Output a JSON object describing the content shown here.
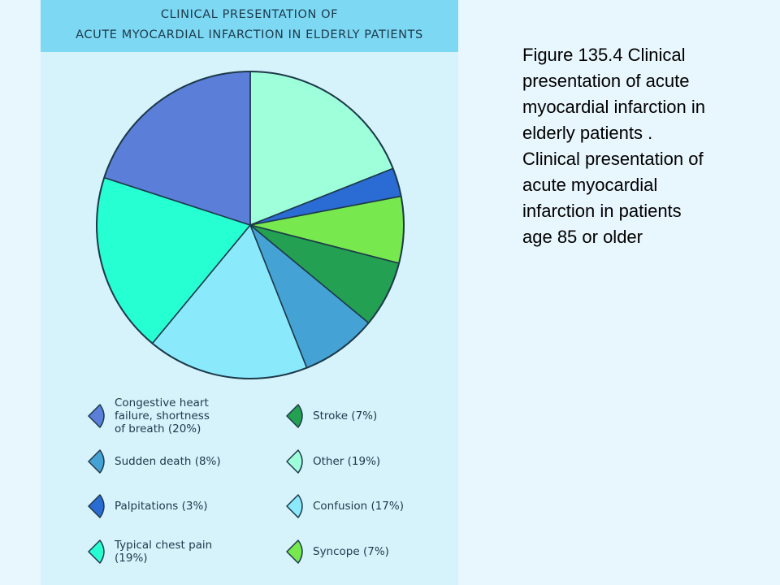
{
  "chart_data": {
    "type": "pie",
    "title": "CLINICAL PRESENTATION OF\nACUTE MYOCARDIAL INFARCTION IN ELDERLY PATIENTS",
    "title_lines": [
      "CLINICAL PRESENTATION OF",
      "ACUTE MYOCARDIAL INFARCTION IN ELDERLY PATIENTS"
    ],
    "slices_clockwise_from_top": [
      {
        "label": "Other (19%)",
        "value": 19,
        "color": "#9effdb"
      },
      {
        "label": "Palpitations (3%)",
        "value": 3,
        "color": "#2a6bd4"
      },
      {
        "label": "Syncope (7%)",
        "value": 7,
        "color": "#77e84e"
      },
      {
        "label": "Stroke (7%)",
        "value": 7,
        "color": "#23a052"
      },
      {
        "label": "Sudden death (8%)",
        "value": 8,
        "color": "#45a2d4"
      },
      {
        "label": "Confusion (17%)",
        "value": 17,
        "color": "#8aeafc"
      },
      {
        "label": "Typical chest pain\n(19%)",
        "value": 19,
        "color": "#25ffd2"
      },
      {
        "label": "Congestive heart\nfailure, shortness\nof breath (20%)",
        "value": 20,
        "color": "#5b7ed8"
      }
    ],
    "legend": [
      {
        "text": "Congestive heart\nfailure, shortness\nof breath (20%)",
        "color": "#5b7ed8"
      },
      {
        "text": "Stroke (7%)",
        "color": "#23a052"
      },
      {
        "text": "Sudden death (8%)",
        "color": "#45a2d4"
      },
      {
        "text": "Other (19%)",
        "color": "#9effdb"
      },
      {
        "text": "Palpitations (3%)",
        "color": "#2a6bd4"
      },
      {
        "text": "Confusion (17%)",
        "color": "#8aeafc"
      },
      {
        "text": "Typical chest pain\n(19%)",
        "color": "#25ffd2"
      },
      {
        "text": "Syncope (7%)",
        "color": "#77e84e"
      }
    ],
    "legend_placement": "bottom"
  },
  "caption": "Figure 135.4  Clinical\npresentation of acute\nmyocardial infarction in\nelderly patients .\nClinical presentation of\nacute myocardial\ninfarction in patients\nage 85 or older",
  "colors": {
    "page_background": "#e8f6fd",
    "figure_background": "#d6f2fb",
    "title_band": "#7dd8f4",
    "outline": "#1d3a4a"
  }
}
